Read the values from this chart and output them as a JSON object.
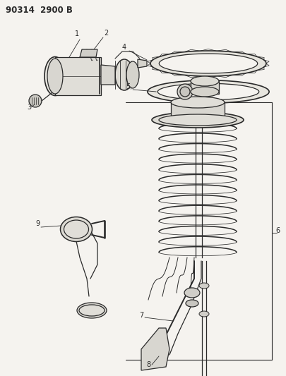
{
  "title": "90314  2900 B",
  "background_color": "#f5f3ef",
  "line_color": "#2a2a2a",
  "label_color": "#1a1a1a",
  "fig_width": 4.05,
  "fig_height": 5.33,
  "dpi": 100
}
